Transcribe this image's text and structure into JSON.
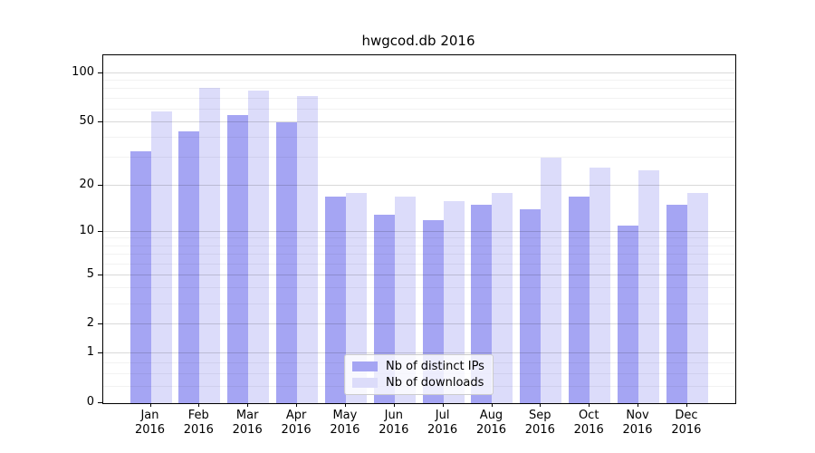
{
  "title": "hwgcod.db 2016",
  "chart_data": {
    "type": "bar",
    "title": "hwgcod.db 2016",
    "categories": [
      "Jan 2016",
      "Feb 2016",
      "Mar 2016",
      "Apr 2016",
      "May 2016",
      "Jun 2016",
      "Jul 2016",
      "Aug 2016",
      "Sep 2016",
      "Oct 2016",
      "Nov 2016",
      "Dec 2016"
    ],
    "series": [
      {
        "name": "Nb of distinct IPs",
        "color": "#a5a5f3",
        "values": [
          33,
          44,
          55,
          50,
          17,
          13,
          12,
          15,
          14,
          17,
          11,
          15
        ]
      },
      {
        "name": "Nb of downloads",
        "color": "#dcdcfa",
        "values": [
          58,
          81,
          78,
          73,
          18,
          17,
          16,
          18,
          30,
          26,
          25,
          18
        ]
      }
    ],
    "yscale": "log1p",
    "ylim": [
      0,
      129
    ],
    "yticks": [
      0,
      1,
      2,
      5,
      10,
      20,
      50,
      100
    ],
    "yticks_minor": [
      0.25,
      0.5,
      0.75,
      3,
      4,
      6,
      7,
      8,
      9,
      30,
      40,
      60,
      70,
      80,
      90
    ],
    "xlabel": "",
    "ylabel": "",
    "legend_position": "lower center",
    "grid": true
  },
  "colors": {
    "background": "#ffffff",
    "spine": "#000000",
    "major_grid": "#d9d9d9",
    "minor_grid": "#f2f2f2",
    "bar_dark": "#a5a5f3",
    "bar_light": "#dcdcfa"
  }
}
